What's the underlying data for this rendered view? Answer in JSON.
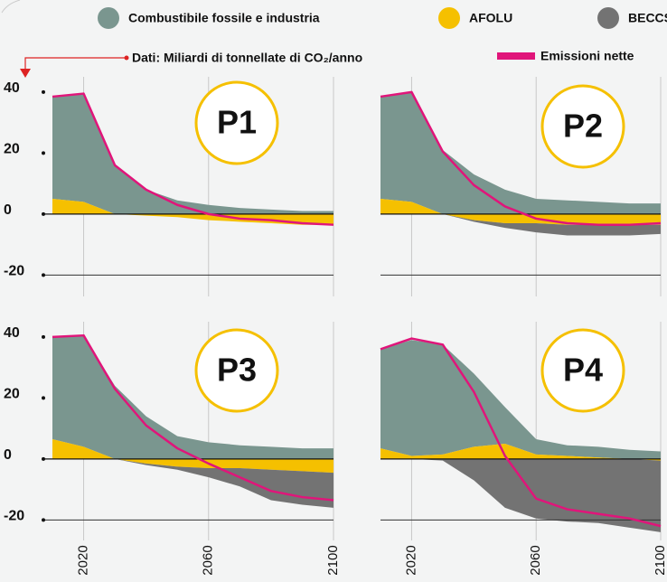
{
  "chart_data": [
    {
      "type": "area",
      "title": "P1",
      "subtitle": "Dati: Miliardi di tonnellate di CO₂/anno",
      "x": [
        2010,
        2020,
        2030,
        2040,
        2050,
        2060,
        2070,
        2080,
        2090,
        2100
      ],
      "xlim": [
        2010,
        2100
      ],
      "xticks": [
        2020,
        2060,
        2100
      ],
      "ylim": [
        -27,
        45
      ],
      "yticks": [
        40,
        20,
        0,
        -20
      ],
      "series": [
        {
          "name": "Combustibile fossile e industria",
          "color": "#7a968f",
          "values": [
            33.5,
            35.5,
            16,
            8,
            4.5,
            3,
            2,
            1.5,
            1,
            1
          ]
        },
        {
          "name": "AFOLU",
          "color": "#f5c000",
          "values": [
            5,
            4,
            0,
            -0.5,
            -1,
            -2,
            -2.5,
            -3,
            -3.5,
            -3.5
          ]
        },
        {
          "name": "BECCS",
          "color": "#737373",
          "values": [
            0,
            0,
            0,
            0,
            0,
            0,
            0,
            0,
            0,
            0
          ]
        },
        {
          "name": "Emissioni nette",
          "color": "#e0157a",
          "type": "line",
          "values": [
            38.5,
            39.5,
            16,
            8,
            3,
            0,
            -1.5,
            -2,
            -3,
            -3.5
          ]
        }
      ]
    },
    {
      "type": "area",
      "title": "P2",
      "x": [
        2010,
        2020,
        2030,
        2040,
        2050,
        2060,
        2070,
        2080,
        2090,
        2100
      ],
      "xlim": [
        2010,
        2100
      ],
      "xticks": [
        2020,
        2060,
        2100
      ],
      "ylim": [
        -27,
        45
      ],
      "yticks": [
        40,
        20,
        0,
        -20
      ],
      "series": [
        {
          "name": "Combustibile fossile e industria",
          "color": "#7a968f",
          "values": [
            33.5,
            36,
            21,
            13,
            8,
            5,
            4.5,
            4,
            3.5,
            3.5
          ]
        },
        {
          "name": "AFOLU",
          "color": "#f5c000",
          "values": [
            5,
            4,
            0,
            -2,
            -3,
            -3,
            -3.5,
            -3.5,
            -3.5,
            -3.5
          ]
        },
        {
          "name": "BECCS",
          "color": "#737373",
          "values": [
            0,
            0,
            0,
            -0.5,
            -1.5,
            -3,
            -3.5,
            -3.5,
            -3.5,
            -3
          ]
        },
        {
          "name": "Emissioni nette",
          "color": "#e0157a",
          "type": "line",
          "values": [
            38.5,
            40,
            20.5,
            9.5,
            2.5,
            -1.5,
            -3,
            -3.5,
            -3.5,
            -3
          ]
        }
      ]
    },
    {
      "type": "area",
      "title": "P3",
      "x": [
        2010,
        2020,
        2030,
        2040,
        2050,
        2060,
        2070,
        2080,
        2090,
        2100
      ],
      "xlim": [
        2010,
        2100
      ],
      "xticks": [
        2020,
        2060,
        2100
      ],
      "ylim": [
        -27,
        45
      ],
      "yticks": [
        40,
        20,
        0,
        -20
      ],
      "series": [
        {
          "name": "Combustibile fossile e industria",
          "color": "#7a968f",
          "values": [
            33.5,
            36.5,
            24,
            14,
            7.5,
            5.5,
            4.5,
            4,
            3.5,
            3.5
          ]
        },
        {
          "name": "AFOLU",
          "color": "#f5c000",
          "values": [
            6.5,
            4,
            0,
            -1.5,
            -2.5,
            -3,
            -3,
            -3.5,
            -4,
            -4.5
          ]
        },
        {
          "name": "BECCS",
          "color": "#737373",
          "values": [
            0,
            0,
            0,
            -0.5,
            -1,
            -3,
            -6,
            -10,
            -11,
            -11.5
          ]
        },
        {
          "name": "Emissioni nette",
          "color": "#e0157a",
          "type": "line",
          "values": [
            40,
            40.5,
            23,
            11,
            3.5,
            -1.5,
            -6,
            -10.5,
            -12.5,
            -13.5
          ]
        }
      ]
    },
    {
      "type": "area",
      "title": "P4",
      "x": [
        2010,
        2020,
        2030,
        2040,
        2050,
        2060,
        2070,
        2080,
        2090,
        2100
      ],
      "xlim": [
        2010,
        2100
      ],
      "xticks": [
        2020,
        2060,
        2100
      ],
      "ylim": [
        -27,
        45
      ],
      "yticks": [
        40,
        20,
        0,
        -20
      ],
      "series": [
        {
          "name": "Combustibile fossile e industria",
          "color": "#7a968f",
          "values": [
            32.5,
            38,
            36,
            24,
            12,
            5,
            3.5,
            3.5,
            3,
            2.5
          ]
        },
        {
          "name": "AFOLU",
          "color": "#f5c000",
          "values": [
            3.5,
            1,
            1.5,
            4,
            5,
            1.5,
            1,
            0.5,
            0,
            -0.5
          ]
        },
        {
          "name": "BECCS",
          "color": "#737373",
          "values": [
            0,
            0,
            -0.5,
            -7,
            -16,
            -19.5,
            -20.5,
            -21,
            -22.5,
            -23.5
          ]
        },
        {
          "name": "Emissioni nette",
          "color": "#e0157a",
          "type": "line",
          "values": [
            36,
            39.5,
            37.5,
            22,
            1,
            -13,
            -16.5,
            -18,
            -19.5,
            -22
          ]
        }
      ]
    }
  ]
}
